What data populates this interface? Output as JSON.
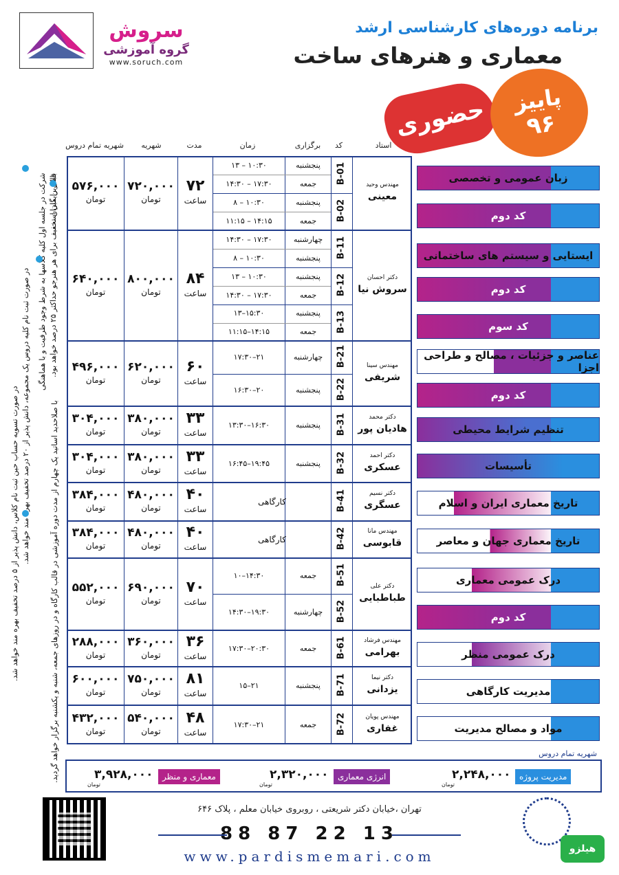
{
  "header": {
    "brand_name": "سروش",
    "brand_sub": "گروه آموزشی",
    "brand_url": "www.soruch.com",
    "subtitle": "برنامه دوره‌های کارشناسی ارشد",
    "title": "معماری و هنرهای ساخت",
    "stamp": "حضوری",
    "season": "پاییز",
    "year": "۹۶"
  },
  "columns": {
    "total_fee": "شهریه تمام دروس",
    "fee": "شهریه",
    "duration": "مدت",
    "time": "زمان",
    "held": "برگزاری",
    "code": "کد",
    "instructor": "استاد"
  },
  "courses": [
    {
      "name": "زبان عمومی و تخصصی",
      "instructor_title": "مهندس وحید",
      "instructor": "معینی",
      "fee": "۷۲۰,۰۰۰",
      "total": "۵۷۶,۰۰۰",
      "duration": "۷۲",
      "unit": "تومان",
      "hours": "ساعت",
      "codes": [
        {
          "code": "B-01",
          "sessions": [
            {
              "day": "پنجشنبه",
              "time": "۱۳ – ۱۰:۳۰"
            },
            {
              "day": "جمعه",
              "time": "۱۴:۳۰ – ۱۷:۳۰"
            }
          ]
        },
        {
          "code": "B-02",
          "sessions": [
            {
              "day": "پنجشنبه",
              "time": "۸ – ۱۰:۳۰"
            },
            {
              "day": "جمعه",
              "time": "۱۱:۱۵ – ۱۴:۱۵"
            }
          ]
        }
      ]
    },
    {
      "name": "ایستایی و سیستم های ساختمانی",
      "instructor_title": "دکتر احسان",
      "instructor": "سروش نیا",
      "fee": "۸۰۰,۰۰۰",
      "total": "۶۴۰,۰۰۰",
      "duration": "۸۴",
      "unit": "تومان",
      "hours": "ساعت",
      "codes": [
        {
          "code": "B-11",
          "sessions": [
            {
              "day": "چهارشنبه",
              "time": "۱۴:۳۰ – ۱۷:۳۰"
            },
            {
              "day": "پنجشنبه",
              "time": "۸ – ۱۰:۳۰"
            }
          ]
        },
        {
          "code": "B-12",
          "sessions": [
            {
              "day": "پنجشنبه",
              "time": "۱۳ – ۱۰:۳۰"
            },
            {
              "day": "جمعه",
              "time": "۱۴:۳۰ – ۱۷:۳۰"
            }
          ]
        },
        {
          "code": "B-13",
          "sessions": [
            {
              "day": "پنجشنبه",
              "time": "۱۳–۱۵:۳۰"
            },
            {
              "day": "جمعه",
              "time": "۱۱:۱۵–۱۴:۱۵"
            }
          ]
        }
      ]
    },
    {
      "name": "عناصر و جزئیات ، مصالح و طراحی اجزا",
      "instructor_title": "مهندس سینا",
      "instructor": "شریفی",
      "fee": "۶۲۰,۰۰۰",
      "total": "۴۹۶,۰۰۰",
      "duration": "۶۰",
      "unit": "تومان",
      "hours": "ساعت",
      "codes": [
        {
          "code": "B-21",
          "sessions": [
            {
              "day": "چهارشنبه",
              "time": "۱۷:۳۰–۲۱"
            }
          ]
        },
        {
          "code": "B-22",
          "sessions": [
            {
              "day": "پنجشنبه",
              "time": "۱۶:۳۰–۲۰"
            }
          ]
        }
      ]
    },
    {
      "name": "تنظیم شرایط محیطی",
      "instructor_title": "دکتر محمد",
      "instructor": "هادیان پور",
      "fee": "۳۸۰,۰۰۰",
      "total": "۳۰۴,۰۰۰",
      "duration": "۳۳",
      "unit": "تومان",
      "hours": "ساعت",
      "codes": [
        {
          "code": "B-31",
          "sessions": [
            {
              "day": "پنجشنبه",
              "time": "۱۳:۳۰–۱۶:۳۰"
            }
          ]
        }
      ]
    },
    {
      "name": "تأسیسات",
      "instructor_title": "دکتر احمد",
      "instructor": "عسکری",
      "fee": "۳۸۰,۰۰۰",
      "total": "۳۰۴,۰۰۰",
      "duration": "۳۳",
      "unit": "تومان",
      "hours": "ساعت",
      "codes": [
        {
          "code": "B-32",
          "sessions": [
            {
              "day": "پنجشنبه",
              "time": "۱۶:۴۵–۱۹:۴۵"
            }
          ]
        }
      ]
    },
    {
      "name": "تاریخ معماری ایران و اسلام",
      "instructor_title": "دکتر نسیم",
      "instructor": "عسگری",
      "fee": "۴۸۰,۰۰۰",
      "total": "۳۸۴,۰۰۰",
      "duration": "۴۰",
      "unit": "تومان",
      "hours": "ساعت",
      "codes": [
        {
          "code": "B-41",
          "sessions": [
            {
              "day": "کارگاهی",
              "time": ""
            }
          ]
        }
      ]
    },
    {
      "name": "تاریخ معماری جهان و معاصر",
      "instructor_title": "مهندس مانا",
      "instructor": "قابوسی",
      "fee": "۴۸۰,۰۰۰",
      "total": "۳۸۴,۰۰۰",
      "duration": "۴۰",
      "unit": "تومان",
      "hours": "ساعت",
      "codes": [
        {
          "code": "B-42",
          "sessions": [
            {
              "day": "کارگاهی",
              "time": ""
            }
          ]
        }
      ]
    },
    {
      "name": "درک عمومی معماری",
      "instructor_title": "دکتر علی",
      "instructor": "طباطبایی",
      "fee": "۶۹۰,۰۰۰",
      "total": "۵۵۲,۰۰۰",
      "duration": "۷۰",
      "unit": "تومان",
      "hours": "ساعت",
      "codes": [
        {
          "code": "B-51",
          "sessions": [
            {
              "day": "جمعه",
              "time": "۱۰–۱۴:۳۰"
            }
          ]
        },
        {
          "code": "B-52",
          "sessions": [
            {
              "day": "چهارشنبه",
              "time": "۱۴:۳۰–۱۹:۳۰"
            }
          ]
        }
      ]
    },
    {
      "name": "درک عمومی منظر",
      "instructor_title": "مهندس فرشاد",
      "instructor": "بهرامی",
      "fee": "۳۶۰,۰۰۰",
      "total": "۲۸۸,۰۰۰",
      "duration": "۳۶",
      "unit": "تومان",
      "hours": "ساعت",
      "codes": [
        {
          "code": "B-61",
          "sessions": [
            {
              "day": "جمعه",
              "time": "۱۷:۳۰–۲۰:۳۰"
            }
          ]
        }
      ]
    },
    {
      "name": "مدیریت کارگاهی",
      "instructor_title": "دکتر نیما",
      "instructor": "یزدانی",
      "fee": "۷۵۰,۰۰۰",
      "total": "۶۰۰,۰۰۰",
      "duration": "۸۱",
      "unit": "تومان",
      "hours": "ساعت",
      "codes": [
        {
          "code": "B-71",
          "sessions": [
            {
              "day": "پنجشنبه",
              "time": "۱۵–۲۱"
            }
          ]
        }
      ]
    },
    {
      "name": "مواد و مصالح مدیریت",
      "instructor_title": "مهندس پویان",
      "instructor": "غفاری",
      "fee": "۵۴۰,۰۰۰",
      "total": "۴۳۲,۰۰۰",
      "duration": "۴۸",
      "unit": "تومان",
      "hours": "ساعت",
      "codes": [
        {
          "code": "B-72",
          "sessions": [
            {
              "day": "جمعه",
              "time": "۱۷:۳۰–۲۱"
            }
          ]
        }
      ]
    }
  ],
  "second_code_label": "کد دوم",
  "third_code_label": "کد سوم",
  "notes": [
    "شرکت در جلسه اول کلیه کلاسها به شرط وجود ظرفیت و با هماهنگی قبلی رایگان است.",
    "در صورت ثبت نام کلیه دروس یک مجموعه، دانش پذیر از ۲۰ درصد تخفیف بهره مند خواهد شد.",
    "در صورت تسویه حساب حین ثبت نام کلاس، دانش پذیر از ۵ درصد تخفیف بهره مند خواهد شد.",
    "با صلاحدید اساتید یک چهارم از مدت دوره آموزشی در قالب کارگاه و در روزهای جمعه، شنبه و یکشنبه برگزار خواهد گردید.",
    "بالاترین میزان تخفیف برای هر هنرجو حداکثر ۲۵ درصد خواهد بود."
  ],
  "summary": {
    "label": "شهریه تمام دروس",
    "unit": "تومان",
    "items": [
      {
        "name": "مدیریت پروژه",
        "value": "۲,۲۴۸,۰۰۰",
        "color": "#2a8fdf"
      },
      {
        "name": "انرژی معماری",
        "value": "۲,۳۲۰,۰۰۰",
        "color": "#8b2f9c"
      },
      {
        "name": "معماری و منظر",
        "value": "۳,۹۲۸,۰۰۰",
        "color": "#b4238a"
      }
    ]
  },
  "footer": {
    "address": "تهران ،خیابان دکتر شریعتی ، روبروی خیابان معلم ، پلاک ۶۴۶",
    "phone": "88 87 22 13",
    "site": "www.pardismemari.com",
    "watermark": "هیلزو"
  },
  "colors": {
    "accent": "#2a8fdf",
    "purple": "#8b2f9c",
    "magenta": "#b4238a",
    "navy": "#1f3c8c",
    "orange": "#ee7124",
    "red": "#d33"
  }
}
